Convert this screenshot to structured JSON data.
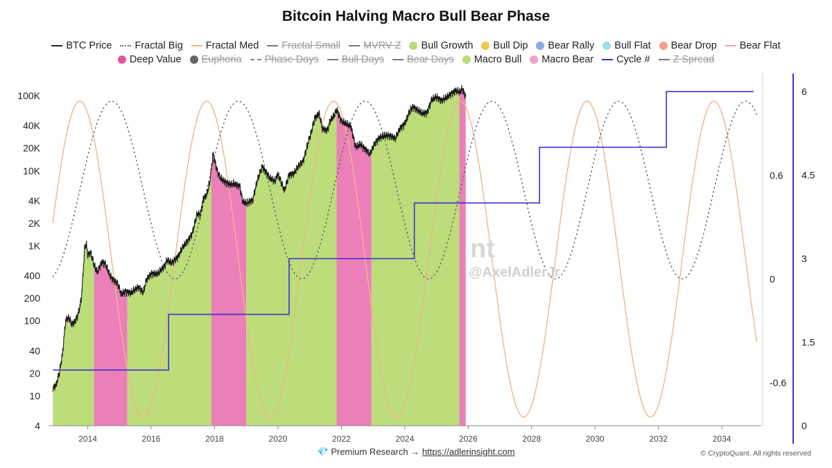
{
  "title": "Bitcoin Halving Macro Bull Bear Phase",
  "legend_row1": [
    {
      "label": "BTC Price",
      "symbol": "line",
      "color": "#222222",
      "struck": false
    },
    {
      "label": "Fractal Big",
      "symbol": "dotted",
      "color": "#666666",
      "struck": false
    },
    {
      "label": "Fractal Med",
      "symbol": "line",
      "color": "#f0b48a",
      "struck": false
    },
    {
      "label": "Fractal Small",
      "symbol": "line",
      "color": "#777777",
      "struck": true
    },
    {
      "label": "MVRV Z",
      "symbol": "line",
      "color": "#777777",
      "struck": true
    },
    {
      "label": "Bull Growth",
      "symbol": "dot",
      "color": "#b9dd79",
      "struck": false
    },
    {
      "label": "Bull Dip",
      "symbol": "dot",
      "color": "#f2c94c",
      "struck": false
    },
    {
      "label": "Bear Rally",
      "symbol": "dot",
      "color": "#8fa8e8",
      "struck": false
    },
    {
      "label": "Bull Flat",
      "symbol": "dot",
      "color": "#9fdde6",
      "struck": false
    },
    {
      "label": "Bear Drop",
      "symbol": "dot",
      "color": "#f4a08f",
      "struck": false
    },
    {
      "label": "Bear Flat",
      "symbol": "line",
      "color": "#f4a0b4",
      "struck": false
    }
  ],
  "legend_row2": [
    {
      "label": "Deep Value",
      "symbol": "dot",
      "color": "#e0559a",
      "struck": false
    },
    {
      "label": "Euphoria",
      "symbol": "dot",
      "color": "#666666",
      "struck": true
    },
    {
      "label": "Phase Days",
      "symbol": "dashed",
      "color": "#888888",
      "struck": true
    },
    {
      "label": "Bull Days",
      "symbol": "line",
      "color": "#777777",
      "struck": true
    },
    {
      "label": "Bear Days",
      "symbol": "line",
      "color": "#777777",
      "struck": true
    },
    {
      "label": "Macro Bull",
      "symbol": "dot",
      "color": "#b9dd79",
      "struck": false
    },
    {
      "label": "Macro Bear",
      "symbol": "dot",
      "color": "#ee9fc8",
      "struck": false
    },
    {
      "label": "Cycle #",
      "symbol": "line",
      "color": "#3b2fd0",
      "struck": false
    },
    {
      "label": "Z Spread",
      "symbol": "line",
      "color": "#777777",
      "struck": true
    }
  ],
  "chart_data": {
    "type": "area",
    "x_range": [
      2012.85,
      2035.2
    ],
    "x_ticks": [
      "2014",
      "2016",
      "2018",
      "2020",
      "2022",
      "2024",
      "2026",
      "2028",
      "2030",
      "2032",
      "2034"
    ],
    "y_left": {
      "scale": "log",
      "range": [
        4,
        160000
      ],
      "ticks": [
        "4",
        "10",
        "20",
        "40",
        "100",
        "200",
        "400",
        "1K",
        "2K",
        "4K",
        "10K",
        "20K",
        "40K",
        "100K"
      ]
    },
    "y_mid": {
      "range": [
        -0.85,
        1.15
      ],
      "ticks": [
        "-0.6",
        "0",
        "0.6"
      ]
    },
    "y_right": {
      "range": [
        0,
        6.2
      ],
      "ticks": [
        "0",
        "1.5",
        "3",
        "4.5",
        "6"
      ]
    },
    "btc_price": [
      [
        2012.9,
        13
      ],
      [
        2013.0,
        14
      ],
      [
        2013.1,
        20
      ],
      [
        2013.2,
        35
      ],
      [
        2013.3,
        100
      ],
      [
        2013.4,
        110
      ],
      [
        2013.5,
        90
      ],
      [
        2013.6,
        100
      ],
      [
        2013.7,
        125
      ],
      [
        2013.8,
        200
      ],
      [
        2013.9,
        900
      ],
      [
        2013.95,
        1100
      ],
      [
        2014.0,
        750
      ],
      [
        2014.1,
        800
      ],
      [
        2014.2,
        550
      ],
      [
        2014.3,
        450
      ],
      [
        2014.45,
        620
      ],
      [
        2014.55,
        580
      ],
      [
        2014.7,
        400
      ],
      [
        2014.8,
        350
      ],
      [
        2014.95,
        310
      ],
      [
        2015.05,
        230
      ],
      [
        2015.2,
        250
      ],
      [
        2015.35,
        235
      ],
      [
        2015.5,
        260
      ],
      [
        2015.6,
        280
      ],
      [
        2015.75,
        240
      ],
      [
        2015.85,
        360
      ],
      [
        2016.0,
        430
      ],
      [
        2016.2,
        420
      ],
      [
        2016.4,
        520
      ],
      [
        2016.5,
        650
      ],
      [
        2016.65,
        600
      ],
      [
        2016.85,
        720
      ],
      [
        2017.0,
        960
      ],
      [
        2017.15,
        1150
      ],
      [
        2017.3,
        1500
      ],
      [
        2017.45,
        2700
      ],
      [
        2017.55,
        2600
      ],
      [
        2017.65,
        4300
      ],
      [
        2017.75,
        4700
      ],
      [
        2017.85,
        7000
      ],
      [
        2017.95,
        17000
      ],
      [
        2018.0,
        14000
      ],
      [
        2018.1,
        9500
      ],
      [
        2018.2,
        8000
      ],
      [
        2018.35,
        7000
      ],
      [
        2018.5,
        6500
      ],
      [
        2018.6,
        6700
      ],
      [
        2018.8,
        6300
      ],
      [
        2018.88,
        4000
      ],
      [
        2019.0,
        3700
      ],
      [
        2019.2,
        4000
      ],
      [
        2019.35,
        7500
      ],
      [
        2019.5,
        11500
      ],
      [
        2019.6,
        10000
      ],
      [
        2019.75,
        8000
      ],
      [
        2019.9,
        7200
      ],
      [
        2020.0,
        9000
      ],
      [
        2020.2,
        5500
      ],
      [
        2020.35,
        9000
      ],
      [
        2020.5,
        9200
      ],
      [
        2020.65,
        11500
      ],
      [
        2020.8,
        13500
      ],
      [
        2020.95,
        24000
      ],
      [
        2021.05,
        33000
      ],
      [
        2021.15,
        50000
      ],
      [
        2021.3,
        58000
      ],
      [
        2021.4,
        36000
      ],
      [
        2021.55,
        34000
      ],
      [
        2021.65,
        47000
      ],
      [
        2021.8,
        58000
      ],
      [
        2021.85,
        67000
      ],
      [
        2022.0,
        46000
      ],
      [
        2022.15,
        42000
      ],
      [
        2022.3,
        39000
      ],
      [
        2022.45,
        21000
      ],
      [
        2022.6,
        23000
      ],
      [
        2022.75,
        19500
      ],
      [
        2022.9,
        16500
      ],
      [
        2023.05,
        23000
      ],
      [
        2023.2,
        28000
      ],
      [
        2023.4,
        30000
      ],
      [
        2023.55,
        29000
      ],
      [
        2023.7,
        26500
      ],
      [
        2023.85,
        37000
      ],
      [
        2024.0,
        43000
      ],
      [
        2024.15,
        62000
      ],
      [
        2024.25,
        71000
      ],
      [
        2024.4,
        64000
      ],
      [
        2024.55,
        58000
      ],
      [
        2024.7,
        60000
      ],
      [
        2024.85,
        90000
      ],
      [
        2025.0,
        96000
      ],
      [
        2025.15,
        85000
      ],
      [
        2025.3,
        94000
      ],
      [
        2025.45,
        107000
      ],
      [
        2025.6,
        118000
      ],
      [
        2025.75,
        112000
      ],
      [
        2025.8,
        124000
      ],
      [
        2025.92,
        98000
      ]
    ],
    "phases": [
      {
        "name": "Macro Bull",
        "start": 2012.9,
        "end": 2014.2
      },
      {
        "name": "Macro Bear",
        "start": 2014.2,
        "end": 2015.25
      },
      {
        "name": "Macro Bull",
        "start": 2015.25,
        "end": 2017.9
      },
      {
        "name": "Macro Bear",
        "start": 2017.9,
        "end": 2019.0
      },
      {
        "name": "Macro Bull",
        "start": 2019.0,
        "end": 2021.85
      },
      {
        "name": "Macro Bear",
        "start": 2021.85,
        "end": 2022.95
      },
      {
        "name": "Macro Bull",
        "start": 2022.95,
        "end": 2025.72
      },
      {
        "name": "Macro Bear",
        "start": 2025.72,
        "end": 2025.92
      }
    ],
    "fractal_med": {
      "period_years": 4.0,
      "peak_year": 2013.75,
      "min_value": -0.8,
      "max_value": 1.03
    },
    "fractal_big": {
      "period_years": 4.0,
      "peak_year": 2014.75,
      "min_value": 0.0,
      "max_value": 1.03
    },
    "cycle_steps": [
      [
        2012.9,
        1
      ],
      [
        2016.55,
        1
      ],
      [
        2016.55,
        2
      ],
      [
        2020.35,
        2
      ],
      [
        2020.35,
        3
      ],
      [
        2024.3,
        3
      ],
      [
        2024.3,
        4
      ],
      [
        2028.25,
        4
      ],
      [
        2028.25,
        5
      ],
      [
        2032.25,
        5
      ],
      [
        2032.25,
        6
      ],
      [
        2035.0,
        6
      ]
    ]
  },
  "watermark": {
    "logo": "nt",
    "handle": "@AxelAdlerJr"
  },
  "footer": {
    "gem": "💎",
    "prefix": "Premium Research →",
    "link": "https://adlerinsight.com"
  },
  "copyright": "© CryptoQuant. All rights reserved"
}
